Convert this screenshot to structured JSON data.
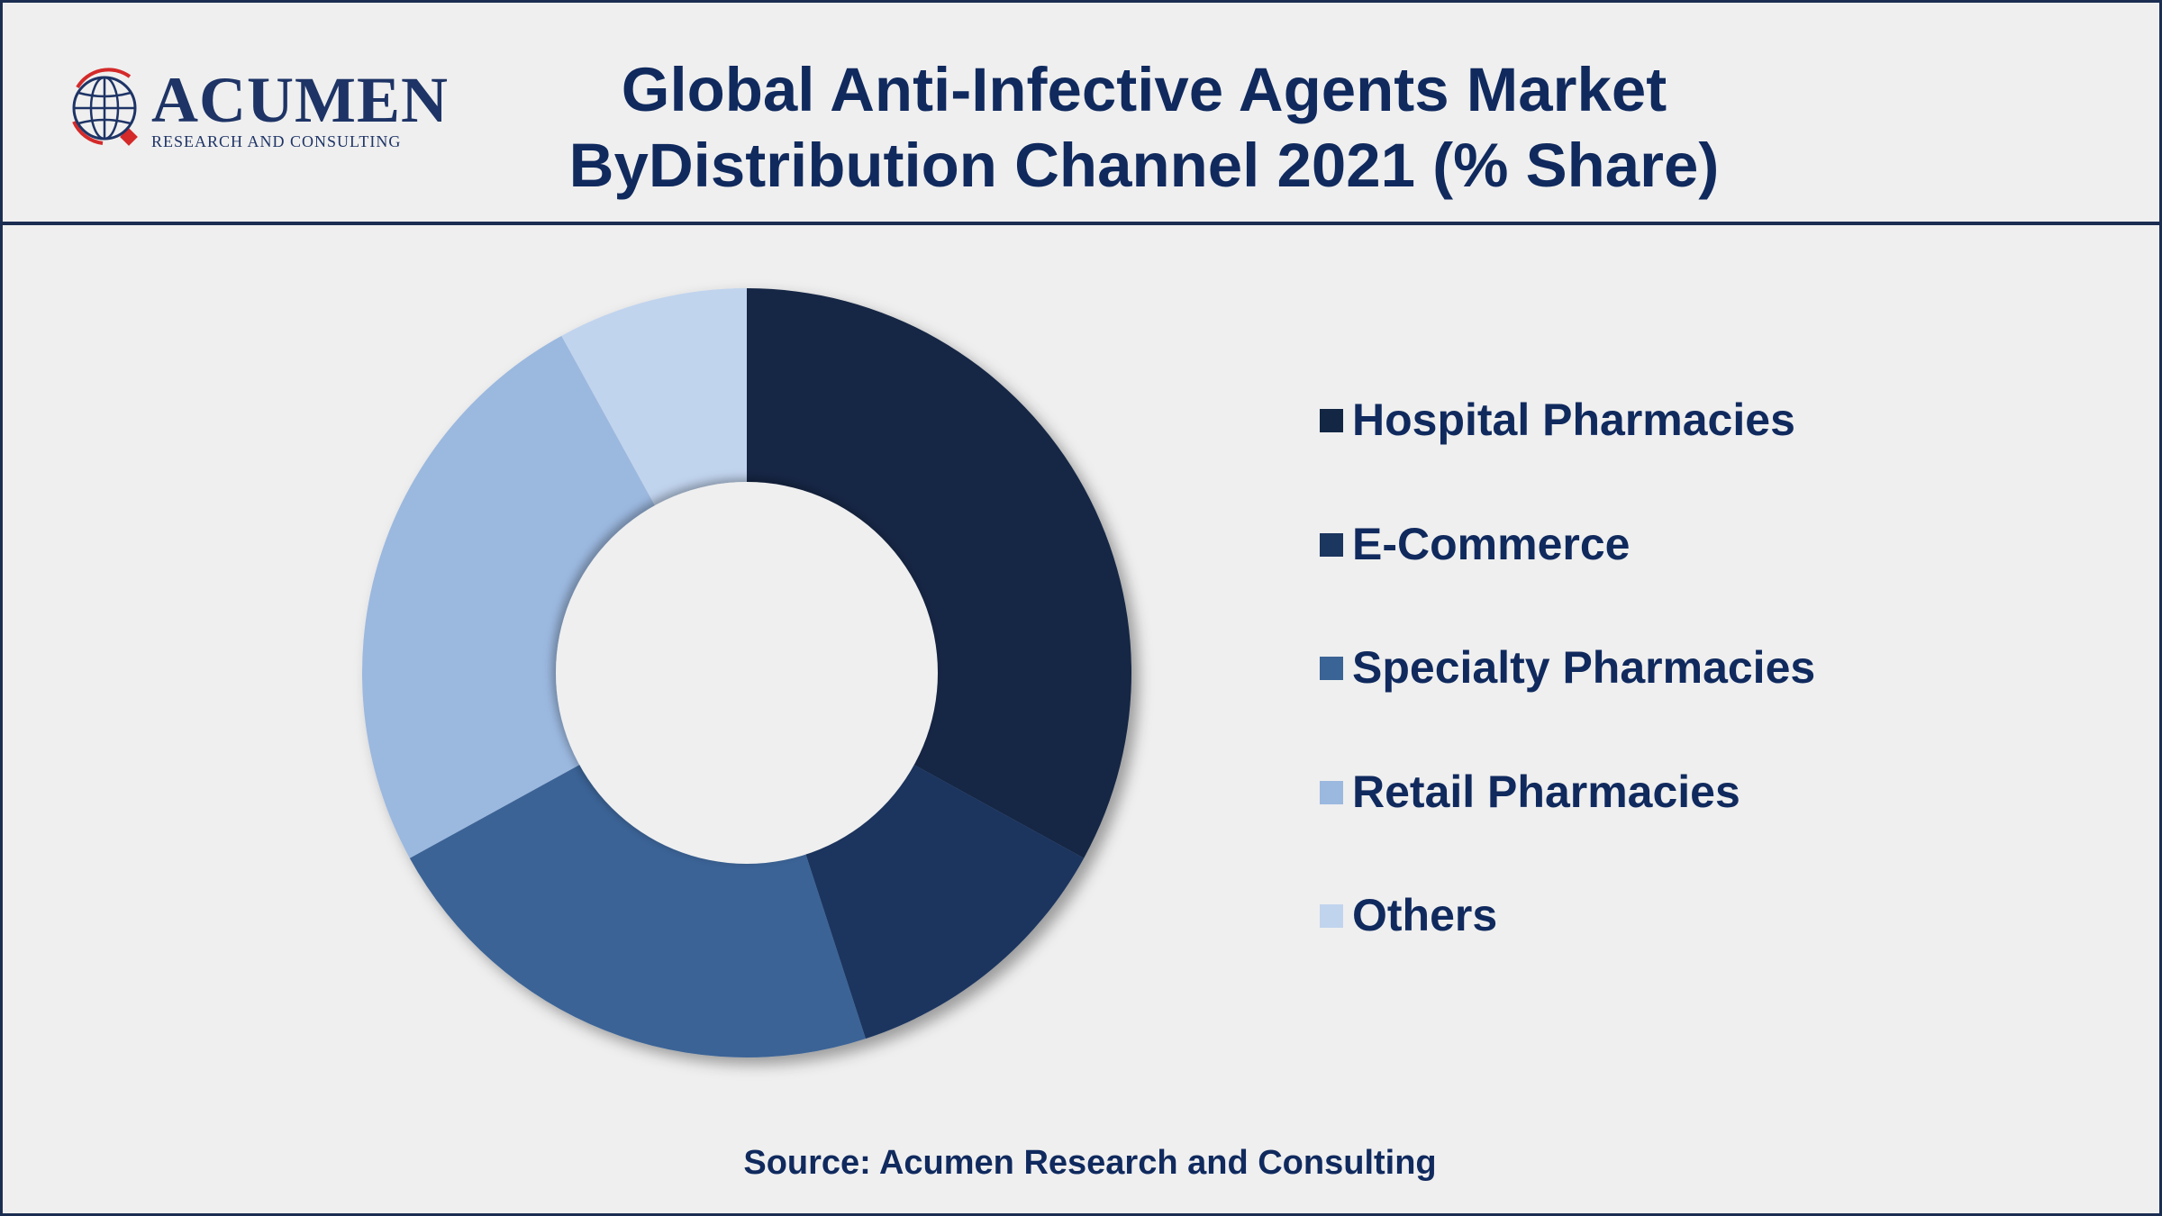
{
  "header": {
    "logo": {
      "word": "ACUMEN",
      "tagline": "RESEARCH AND CONSULTING",
      "icon": "globe-icon"
    },
    "title_line1": "Global Anti-Infective Agents Market",
    "title_line2": "ByDistribution Channel 2021 (% Share)"
  },
  "colors": {
    "border": "#1b2e52",
    "text": "#102a5e",
    "background": "#efefef"
  },
  "chart_data": {
    "type": "pie",
    "style": "donut",
    "categories": [
      "Hospital Pharmacies",
      "E-Commerce",
      "Specialty Pharmacies",
      "Retail Pharmacies",
      "Others"
    ],
    "values": [
      33,
      12,
      22,
      25,
      8
    ],
    "unit": "% Share",
    "colors": [
      "#132744",
      "#1b365f",
      "#3a6396",
      "#9bb8df",
      "#c1d4ee"
    ],
    "legend_position": "right"
  },
  "footer": {
    "source": "Source: Acumen Research and Consulting"
  }
}
